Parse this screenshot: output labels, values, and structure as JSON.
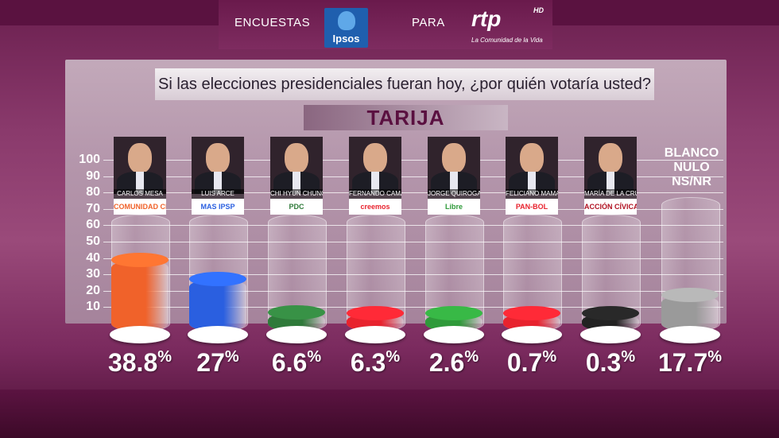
{
  "header": {
    "left_text": "ENCUESTAS",
    "middle_text": "PARA",
    "ipsos_logo": "Ipsos",
    "rtp_logo": "rtp",
    "rtp_hd": "HD",
    "rtp_tagline": "La Comunidad de la Vida"
  },
  "colors": {
    "accent": "#6b1f4f"
  },
  "chart_data": {
    "type": "bar",
    "title": "Si las elecciones presidenciales fueran hoy, ¿por quién votaría usted?",
    "subtitle": "TARIJA",
    "ylim": [
      0,
      100
    ],
    "yticks": [
      100,
      90,
      80,
      70,
      60,
      50,
      40,
      30,
      20,
      10
    ],
    "categories": [
      "CARLOS MESA",
      "LUIS ARCE",
      "CHI HYUN CHUNG",
      "FERNANDO CAMACHO",
      "JORGE QUIROGA",
      "FELICIANO MAMANI",
      "MARÍA DE LA CRUZ BAYÁ",
      "BLANCO NULO NS/NR"
    ],
    "parties": [
      "COMUNIDAD CIUDADANA",
      "MAS IPSP",
      "PDC",
      "creemos",
      "Libre",
      "PAN-BOL",
      "ACCIÓN CÍVICA",
      ""
    ],
    "values": [
      38.8,
      27,
      6.6,
      6.3,
      2.6,
      0.7,
      0.3,
      17.7
    ],
    "value_labels": [
      "38.8",
      "27",
      "6.6",
      "6.3",
      "2.6",
      "0.7",
      "0.3",
      "17.7"
    ],
    "unit": "%",
    "bar_colors": [
      "#f0622a",
      "#2a5fe0",
      "#2f7a3a",
      "#e8232e",
      "#2f9a3a",
      "#e8232e",
      "#222222",
      "#9a9a9a"
    ],
    "blanco_label": [
      "BLANCO",
      "NULO",
      "NS/NR"
    ],
    "grid": true
  }
}
